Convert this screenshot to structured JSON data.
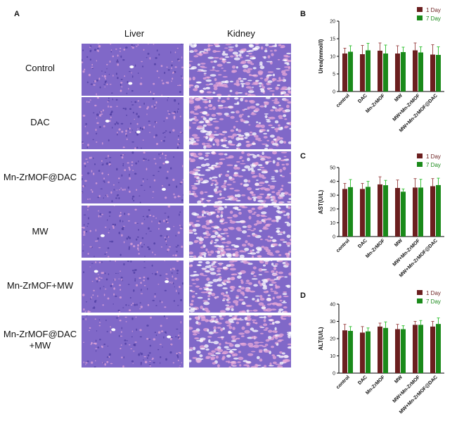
{
  "figure": {
    "panel_a_letter": "A",
    "panel_b_letter": "B",
    "panel_c_letter": "C",
    "panel_d_letter": "D",
    "column_headers": [
      "Liver",
      "Kidney"
    ],
    "row_labels": [
      {
        "line1": "Control",
        "line2": ""
      },
      {
        "line1": "DAC",
        "line2": ""
      },
      {
        "line1": "Mn-ZrMOF@DAC",
        "line2": ""
      },
      {
        "line1": "MW",
        "line2": ""
      },
      {
        "line1": "Mn-ZrMOF+MW",
        "line2": ""
      },
      {
        "line1": "Mn-ZrMOF@DAC",
        "line2": "+MW"
      }
    ],
    "colors": {
      "series_1day": "#6b1f1f",
      "series_7day": "#1a8a1a",
      "err_1day": "#a05050",
      "err_7day": "#3cc43c",
      "tissue_base": "#8068c8",
      "tissue_pink": "#e7a8d8",
      "tissue_purple": "#4a3aa0",
      "legend_text_1day": "#6b1f1f",
      "legend_text_7day": "#1a8a1a"
    }
  },
  "chart_data": [
    {
      "panel": "B",
      "type": "bar",
      "ylabel": "Urea(mmol/l)",
      "ylim": [
        0,
        20
      ],
      "yticks": [
        0,
        5,
        10,
        15,
        20
      ],
      "categories": [
        "control",
        "DAC",
        "Mn-ZrMOF",
        "MW",
        "MW+Mn-ZrMOF",
        "MW+Mn-ZrMOF@DAC"
      ],
      "series": [
        {
          "name": "1 Day",
          "values": [
            10.8,
            10.6,
            11.6,
            10.8,
            11.7,
            10.5
          ],
          "errors": [
            1.5,
            2.5,
            2.2,
            2.2,
            2.1,
            2.8
          ]
        },
        {
          "name": "7 Day",
          "values": [
            11.3,
            11.7,
            10.8,
            11.2,
            11.1,
            10.4
          ],
          "errors": [
            1.7,
            2.0,
            2.4,
            1.4,
            1.6,
            2.3
          ]
        }
      ],
      "legend_position": "top-right"
    },
    {
      "panel": "C",
      "type": "bar",
      "ylabel": "AST(U/L)",
      "ylim": [
        0,
        50
      ],
      "yticks": [
        0,
        10,
        20,
        30,
        40,
        50
      ],
      "categories": [
        "control",
        "DAC",
        "Mn-ZrMOF",
        "MW",
        "MW+Mn-ZrMOF",
        "MW+Mn-ZrMOF@DAC"
      ],
      "series": [
        {
          "name": "1 Day",
          "values": [
            34.5,
            34.5,
            37.8,
            35.2,
            35.5,
            36.5
          ],
          "errors": [
            4.0,
            4.0,
            5.5,
            5.8,
            6.5,
            5.5
          ]
        },
        {
          "name": "7 Day",
          "values": [
            35.8,
            36.0,
            37.2,
            32.5,
            35.5,
            37.3
          ],
          "errors": [
            5.5,
            4.0,
            3.5,
            2.0,
            6.0,
            5.0
          ]
        }
      ],
      "legend_position": "top-right"
    },
    {
      "panel": "D",
      "type": "bar",
      "ylabel": "ALT(U/L)",
      "ylim": [
        0,
        40
      ],
      "yticks": [
        0,
        10,
        20,
        30,
        40
      ],
      "categories": [
        "control",
        "DAC",
        "Mn-ZrMOF",
        "MW",
        "MW+Mn-ZrMOF",
        "MW+Mn-ZrMOF@DAC"
      ],
      "series": [
        {
          "name": "1 Day",
          "values": [
            24.8,
            23.5,
            27.0,
            25.5,
            28.0,
            27.0
          ],
          "errors": [
            3.5,
            3.5,
            2.0,
            2.8,
            2.0,
            3.0
          ]
        },
        {
          "name": "7 Day",
          "values": [
            24.5,
            24.2,
            26.2,
            25.5,
            28.0,
            28.5
          ],
          "errors": [
            2.5,
            2.0,
            3.5,
            2.0,
            2.5,
            3.5
          ]
        }
      ],
      "legend_position": "top-right"
    }
  ]
}
